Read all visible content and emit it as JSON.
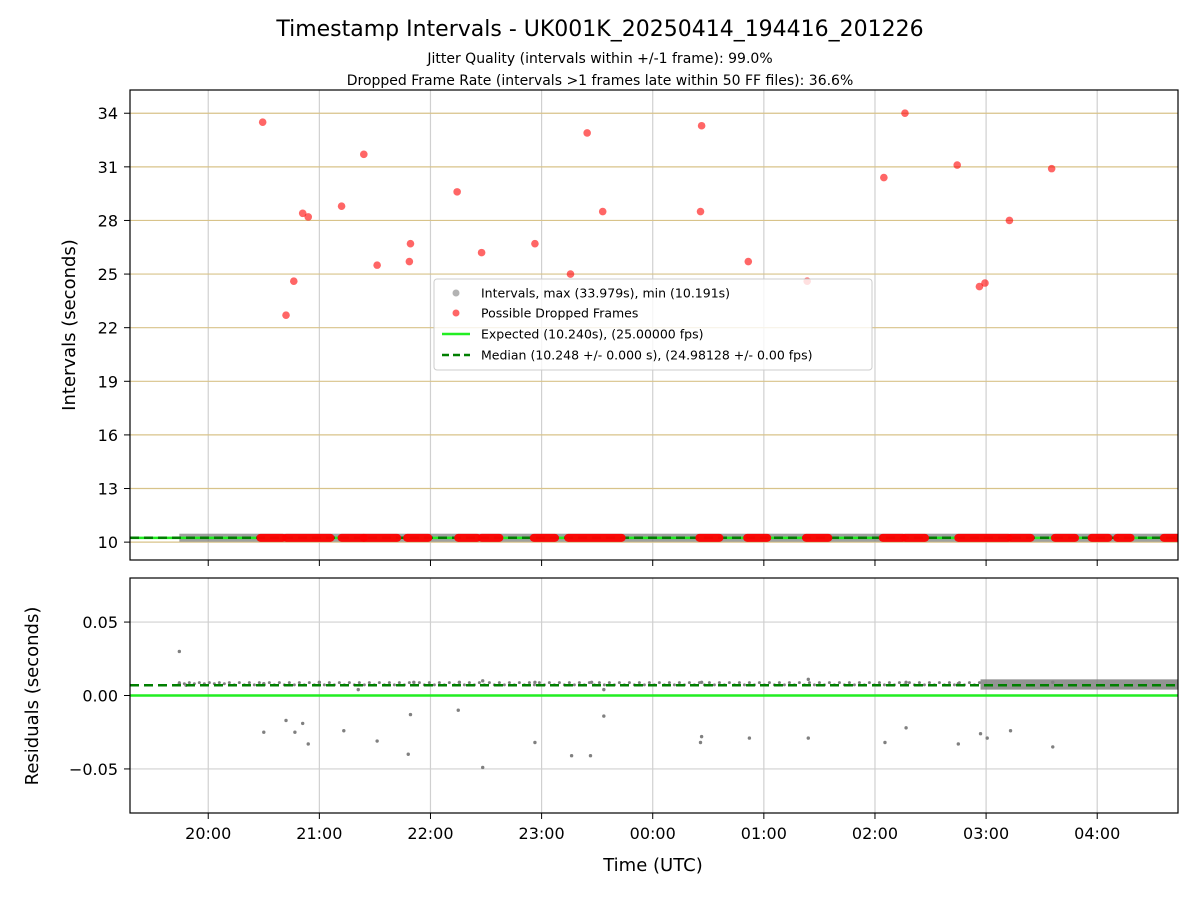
{
  "chart_data": [
    {
      "type": "scatter",
      "title": "Timestamp Intervals - UK001K_20250414_194416_201226",
      "subtitle_lines": [
        "Jitter Quality (intervals within +/-1 frame): 99.0%",
        "Dropped Frame Rate (intervals >1 frames late within 50 FF files): 36.6%"
      ],
      "xlabel": "",
      "ylabel": "Intervals (seconds)",
      "x_unit": "hours since 19:00 UTC",
      "xlim": [
        0.296,
        9.727
      ],
      "ylim": [
        9.0,
        35.3
      ],
      "yticks": [
        10,
        13,
        16,
        19,
        22,
        25,
        28,
        31,
        34
      ],
      "ytick_labels": [
        "10",
        "13",
        "16",
        "19",
        "22",
        "25",
        "28",
        "31",
        "34"
      ],
      "grid": {
        "x": true,
        "y": true,
        "y_color": "#d8c38a"
      },
      "legend_position": "center",
      "colors": {
        "intervals": "#808080",
        "dropped": "#ff0000",
        "expected": "#22ee22",
        "median": "#007f00"
      },
      "series": [
        {
          "name": "Intervals, max (33.979s), min (10.191s)",
          "marker": "circle",
          "color": "#808080",
          "baseline_value": 10.248,
          "x_range": [
            0.74,
            9.727
          ]
        },
        {
          "name": "Possible Dropped Frames",
          "marker": "circle",
          "color": "#ff0000",
          "points": [
            [
              1.49,
              33.5
            ],
            [
              1.7,
              22.7
            ],
            [
              1.77,
              24.6
            ],
            [
              1.85,
              28.4
            ],
            [
              1.9,
              28.2
            ],
            [
              2.2,
              28.8
            ],
            [
              2.4,
              31.7
            ],
            [
              2.52,
              25.5
            ],
            [
              2.81,
              25.7
            ],
            [
              2.82,
              26.7
            ],
            [
              3.24,
              29.6
            ],
            [
              3.46,
              26.2
            ],
            [
              3.94,
              26.7
            ],
            [
              4.26,
              25.0
            ],
            [
              4.41,
              32.9
            ],
            [
              4.55,
              28.5
            ],
            [
              5.43,
              28.5
            ],
            [
              5.44,
              33.3
            ],
            [
              5.86,
              25.7
            ],
            [
              6.39,
              24.6
            ],
            [
              7.08,
              30.4
            ],
            [
              7.27,
              34.0
            ],
            [
              7.74,
              31.1
            ],
            [
              7.94,
              24.3
            ],
            [
              7.99,
              24.5
            ],
            [
              8.21,
              28.0
            ],
            [
              8.59,
              30.9
            ]
          ],
          "baseline_clusters": [
            [
              1.47,
              1.67
            ],
            [
              1.7,
              2.1
            ],
            [
              2.2,
              2.4
            ],
            [
              2.4,
              2.7
            ],
            [
              2.79,
              2.98
            ],
            [
              3.25,
              3.42
            ],
            [
              3.46,
              3.62
            ],
            [
              3.93,
              4.12
            ],
            [
              4.24,
              4.72
            ],
            [
              5.42,
              5.6
            ],
            [
              5.85,
              6.03
            ],
            [
              6.38,
              6.58
            ],
            [
              7.07,
              7.25
            ],
            [
              7.27,
              7.45
            ],
            [
              7.75,
              8.2
            ],
            [
              8.22,
              8.4
            ],
            [
              8.62,
              8.8
            ],
            [
              8.95,
              9.1
            ],
            [
              9.18,
              9.3
            ],
            [
              9.6,
              9.727
            ]
          ],
          "baseline_value": 10.24
        },
        {
          "name": "Expected (10.240s), (25.00000 fps)",
          "type": "hline",
          "value": 10.24,
          "color": "#22ee22",
          "style": "solid"
        },
        {
          "name": "Median (10.248 +/- 0.000 s), (24.98128 +/- 0.00 fps)",
          "type": "hline",
          "value": 10.248,
          "color": "#007f00",
          "style": "dashed"
        }
      ]
    },
    {
      "type": "scatter",
      "title": "",
      "xlabel": "Time (UTC)",
      "ylabel": "Residuals (seconds)",
      "x_unit": "hours since 19:00 UTC",
      "xlim": [
        0.296,
        9.727
      ],
      "ylim": [
        -0.08,
        0.08
      ],
      "yticks": [
        -0.05,
        0.0,
        0.05
      ],
      "ytick_labels": [
        "−0.05",
        "0.00",
        "0.05"
      ],
      "xticks": [
        1,
        2,
        3,
        4,
        5,
        6,
        7,
        8,
        9
      ],
      "xtick_labels": [
        "20:00",
        "21:00",
        "22:00",
        "23:00",
        "00:00",
        "01:00",
        "02:00",
        "03:00",
        "04:00"
      ],
      "grid": {
        "x": true,
        "y": true
      },
      "series": [
        {
          "name": "residuals",
          "color": "#808080",
          "points": [
            [
              0.74,
              0.03
            ],
            [
              0.74,
              0.008
            ],
            [
              1.5,
              -0.025
            ],
            [
              1.7,
              -0.017
            ],
            [
              1.78,
              -0.025
            ],
            [
              1.85,
              -0.019
            ],
            [
              1.9,
              -0.033
            ],
            [
              2.22,
              -0.024
            ],
            [
              2.52,
              -0.031
            ],
            [
              2.8,
              -0.04
            ],
            [
              2.82,
              -0.013
            ],
            [
              3.25,
              -0.01
            ],
            [
              3.47,
              -0.049
            ],
            [
              3.94,
              -0.032
            ],
            [
              4.27,
              -0.041
            ],
            [
              4.44,
              -0.041
            ],
            [
              4.56,
              -0.014
            ],
            [
              5.43,
              -0.032
            ],
            [
              5.44,
              -0.028
            ],
            [
              5.87,
              -0.029
            ],
            [
              6.4,
              -0.029
            ],
            [
              7.09,
              -0.032
            ],
            [
              7.28,
              -0.022
            ],
            [
              7.75,
              -0.033
            ],
            [
              7.95,
              -0.026
            ],
            [
              8.01,
              -0.029
            ],
            [
              8.22,
              -0.024
            ],
            [
              8.6,
              -0.035
            ],
            [
              0.8,
              0.007
            ],
            [
              1.5,
              0.008
            ],
            [
              2.0,
              0.009
            ],
            [
              2.35,
              0.004
            ],
            [
              2.85,
              0.009
            ],
            [
              3.26,
              0.009
            ],
            [
              3.47,
              0.01
            ],
            [
              3.94,
              0.009
            ],
            [
              4.45,
              0.009
            ],
            [
              4.56,
              0.004
            ],
            [
              5.44,
              0.009
            ],
            [
              6.4,
              0.011
            ],
            [
              7.28,
              0.009
            ],
            [
              7.75,
              0.008
            ],
            [
              8.6,
              0.009
            ]
          ],
          "dense_band": {
            "x_range": [
              7.95,
              9.727
            ],
            "y_range": [
              0.004,
              0.011
            ]
          },
          "baseline_value": 0.008
        },
        {
          "name": "expected",
          "type": "hline",
          "value": 0.0,
          "color": "#22ee22",
          "style": "solid"
        },
        {
          "name": "median",
          "type": "hline",
          "value": 0.007,
          "color": "#007f00",
          "style": "dashed"
        }
      ]
    }
  ]
}
